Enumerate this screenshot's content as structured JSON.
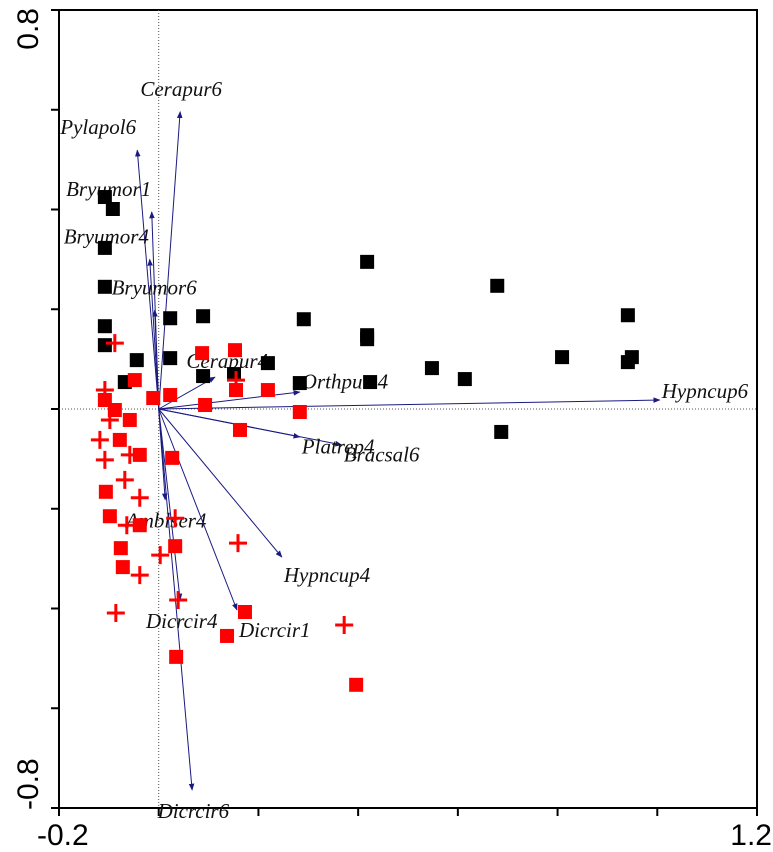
{
  "chart_data": {
    "type": "scatter",
    "xlim": [
      -0.2,
      1.2
    ],
    "ylim": [
      -0.8,
      0.8
    ],
    "xticks": [
      -0.2,
      1.2
    ],
    "yticks": [
      -0.8,
      0.8
    ],
    "xminor_ticks": [
      0,
      0.2,
      0.4,
      0.6,
      0.8,
      1.0
    ],
    "yminor_ticks": [
      -0.6,
      -0.4,
      -0.2,
      0,
      0.2,
      0.4,
      0.6
    ],
    "zero_lines": true,
    "series": [
      {
        "color": "#000000",
        "marker": "square",
        "x": [
          -0.108,
          -0.092,
          -0.108,
          -0.108,
          0.418,
          0.679,
          0.941,
          0.023,
          0.089,
          0.291,
          -0.108,
          0.418,
          0.418,
          -0.044,
          0.023,
          0.219,
          0.809,
          0.949,
          0.941,
          0.548,
          0.614,
          0.424,
          0.283,
          0.151,
          0.089,
          0.687,
          -0.108,
          -0.068
        ],
        "values": [
          0.425,
          0.401,
          0.323,
          0.245,
          0.295,
          0.247,
          0.188,
          0.182,
          0.186,
          0.18,
          0.166,
          0.148,
          0.14,
          0.098,
          0.102,
          0.092,
          0.104,
          0.104,
          0.094,
          0.082,
          0.06,
          0.054,
          0.052,
          0.07,
          0.066,
          -0.046,
          0.128,
          0.054
        ]
      },
      {
        "color": "#ff0000",
        "marker": "square",
        "x": [
          0.087,
          0.153,
          0.219,
          0.163,
          0.283,
          0.027,
          0.033,
          0.173,
          0.137,
          0.035,
          0.396,
          -0.076,
          -0.072,
          -0.038,
          -0.106,
          -0.098,
          -0.108,
          -0.088,
          -0.058,
          -0.038,
          -0.078,
          -0.048,
          0.023,
          0.093,
          0.155,
          -0.011
        ],
        "values": [
          0.112,
          0.118,
          0.038,
          -0.042,
          -0.006,
          -0.098,
          -0.275,
          -0.407,
          -0.455,
          -0.497,
          -0.553,
          -0.279,
          -0.317,
          -0.233,
          -0.166,
          -0.215,
          0.018,
          -0.002,
          -0.022,
          -0.092,
          -0.062,
          0.058,
          0.028,
          0.008,
          0.038,
          0.022
        ]
      },
      {
        "color": "#ff0000",
        "marker": "cross",
        "x": [
          -0.088,
          -0.108,
          -0.098,
          -0.118,
          -0.068,
          -0.038,
          -0.064,
          0.033,
          0.003,
          0.159,
          -0.038,
          0.039,
          -0.086,
          0.372,
          -0.108,
          -0.058,
          0.155
        ],
        "values": [
          0.132,
          0.038,
          -0.022,
          -0.062,
          -0.142,
          -0.178,
          -0.233,
          -0.219,
          -0.293,
          -0.269,
          -0.333,
          -0.383,
          -0.409,
          -0.433,
          -0.102,
          -0.092,
          0.058
        ]
      }
    ],
    "arrow_color": "#1a1a80",
    "arrows": [
      {
        "label": "Cerapur6",
        "x": 0.043,
        "y": 0.596
      },
      {
        "label": "Pylapol6",
        "x": -0.043,
        "y": 0.519
      },
      {
        "label": "Bryumor1",
        "x": -0.014,
        "y": 0.395
      },
      {
        "label": "Bryumor4",
        "x": -0.018,
        "y": 0.3
      },
      {
        "label": "Bryumor6",
        "x": -0.008,
        "y": 0.198
      },
      {
        "label": "Cerapur4",
        "x": 0.113,
        "y": 0.064
      },
      {
        "label": "Orthpum4",
        "x": 0.283,
        "y": 0.034
      },
      {
        "label": "Hypncup6",
        "x": 1.005,
        "y": 0.018
      },
      {
        "label": "Bracsal6",
        "x": 0.367,
        "y": -0.072
      },
      {
        "label": "Platrep4",
        "x": 0.283,
        "y": -0.056
      },
      {
        "label": "Amblser4",
        "x": 0.013,
        "y": -0.182
      },
      {
        "label": "Hypncup4",
        "x": 0.247,
        "y": -0.297
      },
      {
        "label": "Dicrcir1",
        "x": 0.157,
        "y": -0.403
      },
      {
        "label": "Dicrcir4",
        "x": 0.043,
        "y": -0.383
      },
      {
        "label": "Dicrcir6",
        "x": 0.067,
        "y": -0.764
      }
    ]
  }
}
